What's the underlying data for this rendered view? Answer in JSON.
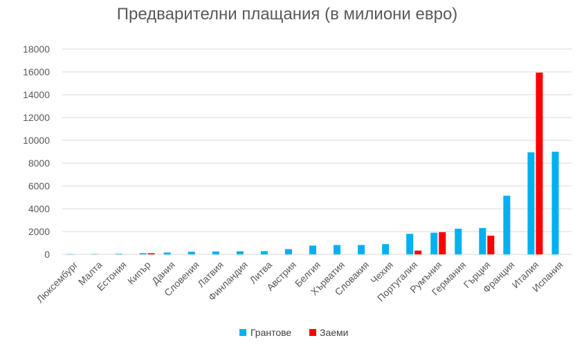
{
  "chart_data": {
    "type": "bar",
    "title": "Предварителни плащания (в милиони евро)",
    "categories": [
      "Люксембург",
      "Малта",
      "Естония",
      "Кипър",
      "Дания",
      "Словения",
      "Латвия",
      "Финландия",
      "Литва",
      "Австрия",
      "Белгия",
      "Хърватия",
      "Словакия",
      "Чехия",
      "Португалия",
      "Румъния",
      "Германия",
      "Гърция",
      "Франция",
      "Италия",
      "Испания"
    ],
    "series": [
      {
        "name": "Грантове",
        "color": "#00B0F0",
        "values": [
          12,
          30,
          50,
          100,
          160,
          230,
          250,
          270,
          280,
          460,
          770,
          820,
          820,
          900,
          1800,
          1900,
          2250,
          2310,
          5140,
          8950,
          9000
        ]
      },
      {
        "name": "Заеми",
        "color": "#FF0000",
        "values": [
          0,
          0,
          0,
          100,
          0,
          0,
          0,
          0,
          0,
          0,
          0,
          0,
          0,
          0,
          330,
          1950,
          0,
          1640,
          0,
          15940,
          0
        ]
      }
    ],
    "ylim": [
      0,
      18000
    ],
    "yticks": [
      0,
      2000,
      4000,
      6000,
      8000,
      10000,
      12000,
      14000,
      16000,
      18000
    ],
    "grid": true,
    "legend": "bottom"
  }
}
